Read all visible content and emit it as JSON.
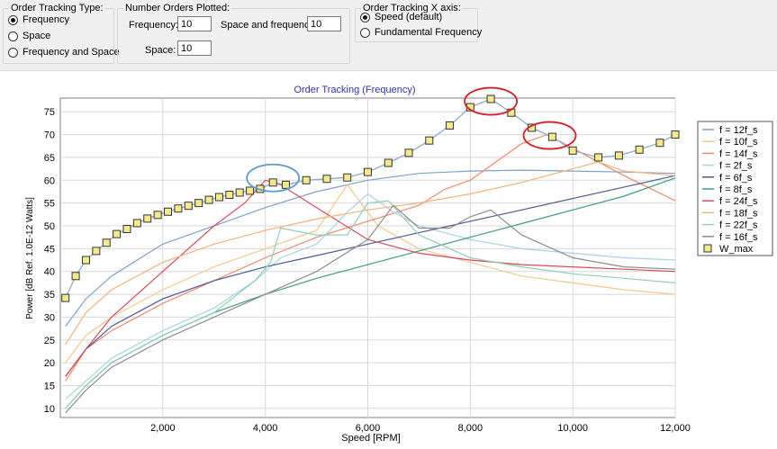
{
  "controls": {
    "tracking_type": {
      "legend": "Order Tracking Type:",
      "options": [
        "Frequency",
        "Space",
        "Frequency and Space"
      ],
      "selected": 0
    },
    "orders_plotted": {
      "legend": "Number Orders Plotted:",
      "frequency_label": "Frequency:",
      "frequency_value": "10",
      "space_freq_label": "Space and frequency",
      "space_freq_value": "10",
      "space_label": "Space:",
      "space_value": "10"
    },
    "x_axis": {
      "legend": "Order Tracking X axis:",
      "options": [
        "Speed (default)",
        "Fundamental Frequency"
      ],
      "selected": 0
    }
  },
  "chart_data": {
    "type": "line",
    "title": "Order Tracking (Frequency)",
    "xlabel": "Speed [RPM]",
    "ylabel": "Power [dB Ref. 1.0E-12 Watts]",
    "xlim": [
      0,
      12000
    ],
    "ylim": [
      8,
      78
    ],
    "x_ticks": [
      2000,
      4000,
      6000,
      8000,
      10000,
      12000
    ],
    "x_tick_labels": [
      "2,000",
      "4,000",
      "6,000",
      "8,000",
      "10,000",
      "12,000"
    ],
    "y_ticks": [
      10,
      15,
      20,
      25,
      30,
      35,
      40,
      45,
      50,
      55,
      60,
      65,
      70,
      75
    ],
    "grid": true,
    "legend_position": "right",
    "series": [
      {
        "name": "f = 12f_s",
        "color": "#7f9fcf",
        "points": [
          [
            100,
            28
          ],
          [
            500,
            34
          ],
          [
            1000,
            39
          ],
          [
            2000,
            46
          ],
          [
            3000,
            50
          ],
          [
            4000,
            54
          ],
          [
            5000,
            57.5
          ],
          [
            6000,
            60
          ],
          [
            7000,
            61.5
          ],
          [
            8000,
            62
          ],
          [
            9000,
            62.2
          ],
          [
            10000,
            62
          ],
          [
            11000,
            61.8
          ],
          [
            12000,
            61.5
          ]
        ]
      },
      {
        "name": "f = 10f_s",
        "color": "#f2c98e",
        "points": [
          [
            100,
            20
          ],
          [
            500,
            26
          ],
          [
            1000,
            30
          ],
          [
            2000,
            36
          ],
          [
            3000,
            41
          ],
          [
            4000,
            45
          ],
          [
            5000,
            49
          ],
          [
            5600,
            59
          ],
          [
            6200,
            50
          ],
          [
            7000,
            45
          ],
          [
            8000,
            42
          ],
          [
            9000,
            39
          ],
          [
            10000,
            37.5
          ],
          [
            11000,
            36
          ],
          [
            12000,
            35
          ]
        ]
      },
      {
        "name": "f = 14f_s",
        "color": "#ee8a6c",
        "points": [
          [
            100,
            16
          ],
          [
            500,
            23
          ],
          [
            1000,
            27
          ],
          [
            2000,
            33
          ],
          [
            3000,
            38
          ],
          [
            4000,
            43
          ],
          [
            5000,
            47.5
          ],
          [
            6000,
            51
          ],
          [
            7000,
            54.5
          ],
          [
            7500,
            58
          ],
          [
            8000,
            60
          ],
          [
            8500,
            64
          ],
          [
            9000,
            68
          ],
          [
            9500,
            70
          ],
          [
            10000,
            67
          ],
          [
            11000,
            61
          ],
          [
            12000,
            55.5
          ]
        ]
      },
      {
        "name": "f = 2f_s",
        "color": "#a9d2e9",
        "points": [
          [
            100,
            12
          ],
          [
            500,
            16
          ],
          [
            1000,
            21
          ],
          [
            2000,
            27
          ],
          [
            3000,
            32
          ],
          [
            3800,
            38
          ],
          [
            4300,
            43
          ],
          [
            5000,
            46
          ],
          [
            5600,
            53
          ],
          [
            6000,
            57
          ],
          [
            6500,
            53
          ],
          [
            7000,
            50
          ],
          [
            8000,
            47
          ],
          [
            9000,
            45
          ],
          [
            10000,
            44
          ],
          [
            11000,
            43
          ],
          [
            12000,
            42.5
          ]
        ]
      },
      {
        "name": "f = 6f_s",
        "color": "#4a5a97",
        "points": [
          [
            100,
            17
          ],
          [
            500,
            23
          ],
          [
            1000,
            28
          ],
          [
            2000,
            34
          ],
          [
            3000,
            38
          ],
          [
            4000,
            41
          ],
          [
            5000,
            43.5
          ],
          [
            6000,
            46
          ],
          [
            7000,
            48.5
          ],
          [
            8000,
            51
          ],
          [
            9000,
            53.5
          ],
          [
            10000,
            56
          ],
          [
            11000,
            58.5
          ],
          [
            12000,
            61
          ]
        ]
      },
      {
        "name": "f = 8f_s",
        "color": "#3d9e7e",
        "points": [
          [
            100,
            10
          ],
          [
            500,
            15
          ],
          [
            1000,
            20
          ],
          [
            2000,
            26
          ],
          [
            3000,
            31
          ],
          [
            4000,
            35
          ],
          [
            5000,
            38.5
          ],
          [
            6000,
            41.5
          ],
          [
            7000,
            44.5
          ],
          [
            8000,
            47.5
          ],
          [
            9000,
            50.5
          ],
          [
            10000,
            53.5
          ],
          [
            11000,
            56.5
          ],
          [
            12000,
            60.5
          ]
        ]
      },
      {
        "name": "f = 24f_s",
        "color": "#d84a5a",
        "points": [
          [
            100,
            17
          ],
          [
            500,
            23
          ],
          [
            1000,
            30
          ],
          [
            2000,
            40
          ],
          [
            3000,
            50
          ],
          [
            3600,
            55
          ],
          [
            4000,
            60
          ],
          [
            4300,
            59
          ],
          [
            5000,
            54
          ],
          [
            6000,
            47
          ],
          [
            7000,
            44
          ],
          [
            8000,
            42.5
          ],
          [
            9000,
            41.5
          ],
          [
            10000,
            41
          ],
          [
            11000,
            40.5
          ],
          [
            12000,
            40
          ]
        ]
      },
      {
        "name": "f = 18f_s",
        "color": "#f5b27d",
        "points": [
          [
            100,
            24
          ],
          [
            500,
            31
          ],
          [
            1000,
            36
          ],
          [
            2000,
            42
          ],
          [
            3000,
            46
          ],
          [
            4000,
            49
          ],
          [
            5000,
            51.5
          ],
          [
            6000,
            53.5
          ],
          [
            7000,
            55
          ],
          [
            8000,
            57
          ],
          [
            9000,
            59.5
          ],
          [
            10000,
            62.5
          ],
          [
            10500,
            64
          ],
          [
            11000,
            62
          ],
          [
            12000,
            61
          ]
        ]
      },
      {
        "name": "f = 22f_s",
        "color": "#8fd0b8",
        "points": [
          [
            100,
            10
          ],
          [
            500,
            15
          ],
          [
            1000,
            20
          ],
          [
            2000,
            26
          ],
          [
            3000,
            31
          ],
          [
            3800,
            38
          ],
          [
            4100,
            42
          ],
          [
            4300,
            49.5
          ],
          [
            5000,
            48
          ],
          [
            5600,
            48
          ],
          [
            6000,
            55
          ],
          [
            6400,
            55.5
          ],
          [
            7000,
            48
          ],
          [
            8000,
            43
          ],
          [
            9000,
            41
          ],
          [
            10000,
            39.5
          ],
          [
            11000,
            38.5
          ],
          [
            12000,
            37.5
          ]
        ]
      },
      {
        "name": "f = 16f_s",
        "color": "#8d8d8d",
        "points": [
          [
            100,
            9
          ],
          [
            500,
            14
          ],
          [
            1000,
            19
          ],
          [
            2000,
            25
          ],
          [
            3000,
            30
          ],
          [
            4000,
            35
          ],
          [
            5000,
            40
          ],
          [
            6000,
            47
          ],
          [
            6500,
            54.5
          ],
          [
            7000,
            49.5
          ],
          [
            7600,
            49.5
          ],
          [
            8000,
            52
          ],
          [
            8400,
            53.5
          ],
          [
            9000,
            48
          ],
          [
            10000,
            43
          ],
          [
            11000,
            41
          ],
          [
            12000,
            40.5
          ]
        ]
      },
      {
        "name": "W_max",
        "color": "#8fa9cf",
        "marker": "square",
        "marker_color": "#f5e98c",
        "points": [
          [
            100,
            34.2
          ],
          [
            300,
            39
          ],
          [
            500,
            42.5
          ],
          [
            700,
            44.5
          ],
          [
            900,
            46.3
          ],
          [
            1100,
            48.2
          ],
          [
            1300,
            49.3
          ],
          [
            1500,
            50.6
          ],
          [
            1700,
            51.6
          ],
          [
            1900,
            52.4
          ],
          [
            2100,
            53.1
          ],
          [
            2300,
            53.8
          ],
          [
            2500,
            54.4
          ],
          [
            2700,
            55
          ],
          [
            2900,
            55.7
          ],
          [
            3100,
            56.3
          ],
          [
            3300,
            56.8
          ],
          [
            3500,
            57.3
          ],
          [
            3700,
            57.7
          ],
          [
            3900,
            58.1
          ],
          [
            4150,
            59.5
          ],
          [
            4400,
            59
          ],
          [
            4800,
            60
          ],
          [
            5200,
            60.3
          ],
          [
            5600,
            60.6
          ],
          [
            6000,
            61.8
          ],
          [
            6400,
            63.8
          ],
          [
            6800,
            66
          ],
          [
            7200,
            68.7
          ],
          [
            7600,
            72
          ],
          [
            8000,
            76
          ],
          [
            8400,
            77.8
          ],
          [
            8800,
            74.8
          ],
          [
            9200,
            71.5
          ],
          [
            9600,
            69.5
          ],
          [
            10000,
            66.5
          ],
          [
            10500,
            65
          ],
          [
            10900,
            65.4
          ],
          [
            11300,
            66.7
          ],
          [
            11700,
            68.2
          ],
          [
            12000,
            70
          ]
        ]
      }
    ],
    "highlights": [
      {
        "x": 4150,
        "y": 60.5,
        "color": "#5b9bd5"
      },
      {
        "x": 8400,
        "y": 77.3,
        "color": "#d81f26"
      },
      {
        "x": 9550,
        "y": 69.8,
        "color": "#d81f26"
      }
    ]
  }
}
